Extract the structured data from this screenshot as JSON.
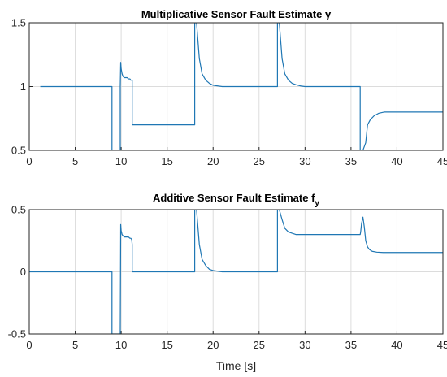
{
  "chart_data": [
    {
      "type": "line",
      "title": "Multiplicative Sensor Fault Estimate γ",
      "xlabel": "",
      "ylabel": "",
      "xlim": [
        0,
        45
      ],
      "ylim": [
        0.5,
        1.5
      ],
      "xticks": [
        "0",
        "5",
        "10",
        "15",
        "20",
        "25",
        "30",
        "35",
        "40",
        "45"
      ],
      "yticks": [
        "0.5",
        "1",
        "1.5"
      ],
      "grid": true,
      "color": "#1f77b4",
      "series": [
        {
          "x": [
            1.2,
            1.2,
            9.0,
            9.0,
            9.0,
            9.9,
            9.9,
            9.95,
            10.0,
            10.1,
            10.2,
            10.35,
            10.5,
            10.65,
            10.8,
            10.95,
            11.05,
            11.15,
            11.2,
            11.2,
            11.25,
            11.25,
            18.0,
            18.0,
            18.0,
            18.2,
            18.5,
            18.8,
            19.2,
            19.6,
            20.0,
            21.0,
            27.0,
            27.0,
            27.0,
            27.2,
            27.5,
            27.8,
            28.2,
            28.6,
            29.0,
            29.5,
            30.0,
            36.0,
            36.0,
            36.0,
            36.3,
            36.6,
            36.8,
            37.1,
            37.5,
            38.0,
            38.6,
            39.5,
            45.0
          ],
          "y": [
            1.0,
            1.0,
            1.0,
            0.5,
            0.5,
            0.5,
            1.0,
            1.19,
            1.14,
            1.1,
            1.08,
            1.07,
            1.07,
            1.07,
            1.06,
            1.06,
            1.05,
            1.05,
            1.05,
            0.7,
            0.7,
            0.7,
            0.7,
            1.5,
            1.5,
            1.5,
            1.22,
            1.1,
            1.05,
            1.025,
            1.01,
            1.0,
            1.0,
            1.5,
            1.5,
            1.5,
            1.22,
            1.1,
            1.05,
            1.025,
            1.015,
            1.005,
            1.0,
            1.0,
            0.5,
            0.5,
            0.5,
            0.56,
            0.7,
            0.74,
            0.77,
            0.79,
            0.8,
            0.8,
            0.8
          ]
        }
      ]
    },
    {
      "type": "line",
      "title": "Additive Sensor Fault Estimate f",
      "title_sub": "y",
      "xlabel": "Time [s]",
      "ylabel": "",
      "xlim": [
        0,
        45
      ],
      "ylim": [
        -0.5,
        0.5
      ],
      "xticks": [
        "0",
        "5",
        "10",
        "15",
        "20",
        "25",
        "30",
        "35",
        "40",
        "45"
      ],
      "yticks": [
        "-0.5",
        "0",
        "0.5"
      ],
      "grid": true,
      "color": "#1f77b4",
      "series": [
        {
          "x": [
            0.0,
            9.0,
            9.0,
            9.0,
            9.9,
            9.9,
            9.95,
            10.0,
            10.1,
            10.2,
            10.35,
            10.5,
            10.65,
            10.8,
            10.95,
            11.05,
            11.15,
            11.2,
            11.2,
            11.25,
            11.25,
            18.0,
            18.0,
            18.0,
            18.2,
            18.5,
            18.8,
            19.2,
            19.6,
            20.0,
            21.0,
            27.0,
            27.0,
            27.0,
            27.2,
            27.5,
            27.8,
            28.2,
            28.6,
            29.0,
            36.0,
            36.05,
            36.15,
            36.3,
            36.45,
            36.6,
            36.8,
            37.0,
            37.3,
            37.8,
            38.5,
            45.0
          ],
          "y": [
            0.0,
            0.0,
            -0.5,
            -0.5,
            -0.5,
            -0.5,
            0.38,
            0.33,
            0.3,
            0.29,
            0.28,
            0.28,
            0.28,
            0.28,
            0.27,
            0.27,
            0.26,
            0.22,
            0.0,
            0.0,
            0.0,
            0.0,
            0.5,
            0.5,
            0.5,
            0.22,
            0.1,
            0.05,
            0.02,
            0.01,
            0.0,
            0.0,
            0.5,
            0.5,
            0.5,
            0.42,
            0.35,
            0.32,
            0.31,
            0.3,
            0.3,
            0.32,
            0.39,
            0.44,
            0.36,
            0.25,
            0.2,
            0.18,
            0.165,
            0.158,
            0.155,
            0.155
          ]
        }
      ]
    }
  ]
}
